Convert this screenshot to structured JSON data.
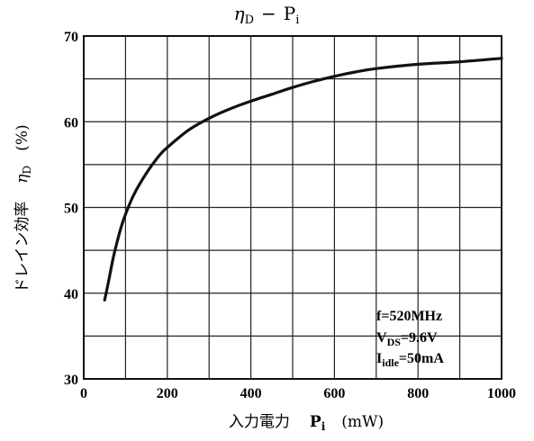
{
  "chart_data": {
    "type": "line",
    "title": "ηD − Pi",
    "title_parts": {
      "eta": "η",
      "eta_sub": "D",
      "dash": "−",
      "p": "P",
      "p_sub": "i"
    },
    "xlabel": "入力電力　Pi　(mW)",
    "xlabel_parts": {
      "jp": "入力電力",
      "p": "P",
      "p_sub": "i",
      "unit": "(mW)"
    },
    "ylabel": "ドレイン効率　ηD　(%)",
    "ylabel_parts": {
      "jp": "ドレイン効率",
      "eta": "η",
      "eta_sub": "D",
      "unit": "(%)"
    },
    "xlim": [
      0,
      1000
    ],
    "ylim": [
      30,
      70
    ],
    "x_ticks": [
      "0",
      "200",
      "400",
      "600",
      "800",
      "1000"
    ],
    "y_ticks": [
      "30",
      "40",
      "50",
      "60",
      "70"
    ],
    "grid": true,
    "series": [
      {
        "x": [
          50,
          60,
          70,
          80,
          90,
          100,
          120,
          150,
          180,
          200,
          250,
          300,
          350,
          400,
          450,
          500,
          550,
          600,
          650,
          700,
          800,
          900,
          1000
        ],
        "y": [
          39.2,
          41.5,
          44.0,
          46.0,
          47.8,
          49.2,
          51.5,
          54.0,
          56.0,
          57.0,
          59.0,
          60.4,
          61.5,
          62.4,
          63.2,
          64.0,
          64.7,
          65.3,
          65.8,
          66.2,
          66.7,
          67.0,
          67.4
        ]
      }
    ],
    "annotations": {
      "freq": "f=520MHz",
      "vds_main": "V",
      "vds_sub": "DS",
      "vds_val": "=9.6V",
      "idle_main": "I",
      "idle_sub": "idle",
      "idle_val": "=50mA"
    }
  }
}
